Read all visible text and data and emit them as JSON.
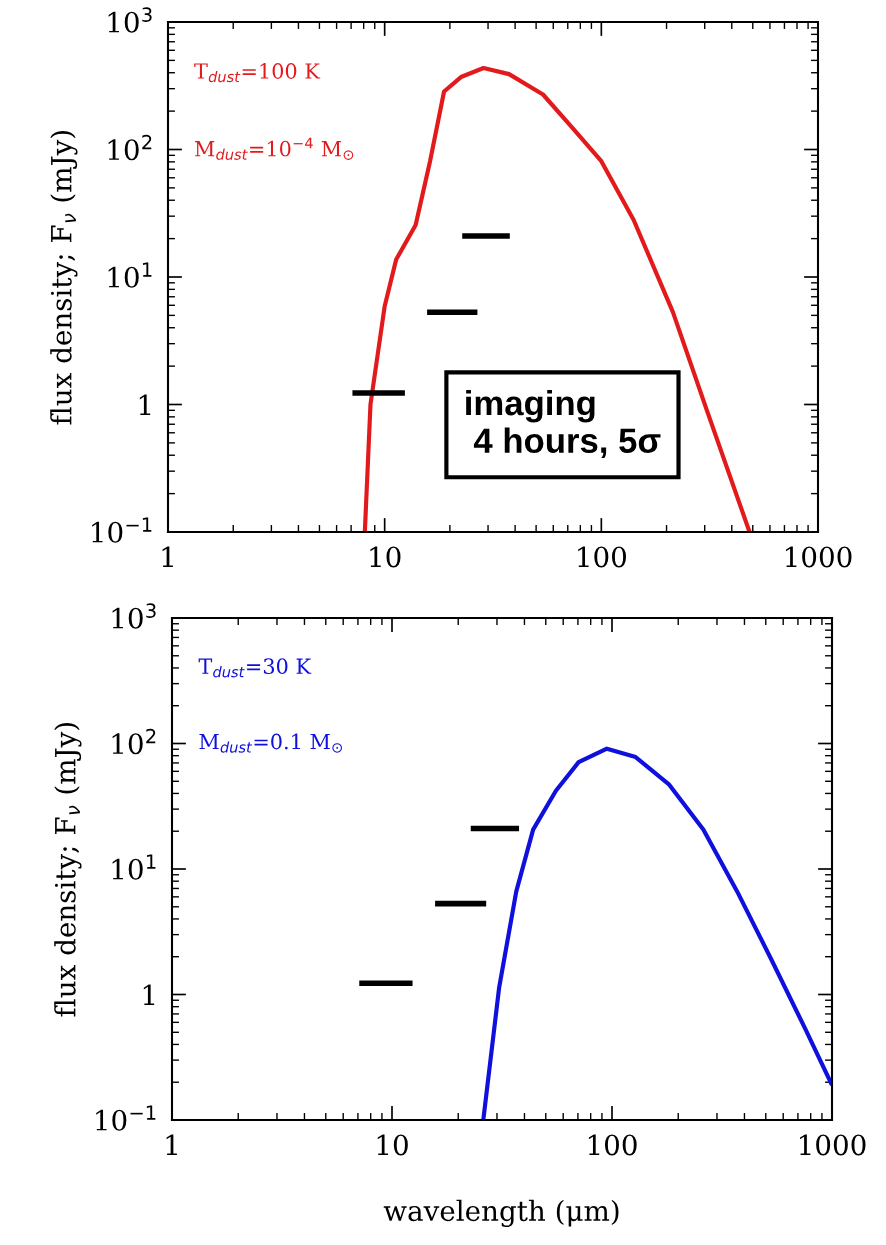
{
  "chart_data": [
    {
      "type": "line",
      "ylabel": "flux density; F$_{ν}$ (mJy)",
      "xlim": [
        1,
        1000
      ],
      "xticks": [
        1,
        10,
        100,
        1000
      ],
      "ylim": [
        0.1,
        1000
      ],
      "yticks": [
        {
          "value": 0.1,
          "label": "10$^{−1}$"
        },
        1,
        {
          "value": 10,
          "label": "10$^{1}$"
        },
        {
          "value": 100,
          "label": "10$^{2}$"
        },
        {
          "value": 1000,
          "label": "10$^{3}$"
        }
      ],
      "log": "xy",
      "grid": false,
      "legend": false,
      "annotations": [
        "T$_{dust}$=100 K",
        "M$_{dust}$=10$^{−4}$ M$_{⊙}$",
        "imaging\n 4 hours, 5σ"
      ],
      "series": [
        {
          "color": "#e31a1c",
          "x": [
            8.1,
            8.6,
            10,
            11.3,
            13.9,
            16.2,
            18.8,
            22.5,
            28.6,
            37.5,
            53.8,
            72.7,
            100,
            141,
            214,
            307,
            483
          ],
          "values": [
            0.1,
            1,
            5.9,
            13.7,
            25.6,
            81,
            285,
            370,
            436,
            390,
            270,
            151,
            81,
            28,
            5.3,
            0.9,
            0.1
          ]
        },
        {
          "color": "#000000",
          "x": [
            7.1,
            12.4
          ],
          "values": [
            1.23,
            1.23
          ]
        },
        {
          "color": "#000000",
          "x": [
            15.7,
            26.8
          ],
          "values": [
            5.3,
            5.3
          ]
        },
        {
          "color": "#000000",
          "x": [
            22.8,
            37.8
          ],
          "values": [
            21,
            21
          ]
        }
      ]
    },
    {
      "type": "line",
      "xlabel": "wavelength (μm)",
      "ylabel": "flux density; F$_{ν}$ (mJy)",
      "xlim": [
        1,
        1000
      ],
      "xticks": [
        1,
        10,
        100,
        1000
      ],
      "ylim": [
        0.1,
        1000
      ],
      "yticks": [
        {
          "value": 0.1,
          "label": "10$^{−1}$"
        },
        1,
        {
          "value": 10,
          "label": "10$^{1}$"
        },
        {
          "value": 100,
          "label": "10$^{2}$"
        },
        {
          "value": 1000,
          "label": "10$^{3}$"
        }
      ],
      "log": "xy",
      "grid": false,
      "legend": false,
      "annotations": [
        "T$_{dust}$=30 K",
        "M$_{dust}$=0.1 M$_{⊙}$"
      ],
      "series": [
        {
          "color": "#1010dd",
          "x": [
            26,
            30.7,
            36.7,
            43.8,
            55.6,
            70.5,
            94.8,
            128,
            182,
            260,
            371,
            530,
            757,
            1000
          ],
          "values": [
            0.1,
            1.14,
            6.6,
            20.6,
            42,
            71,
            91,
            78,
            47,
            20.6,
            6.6,
            1.9,
            0.53,
            0.19
          ]
        },
        {
          "color": "#000000",
          "x": [
            7.1,
            12.4
          ],
          "values": [
            1.23,
            1.23
          ]
        },
        {
          "color": "#000000",
          "x": [
            15.7,
            26.8
          ],
          "values": [
            5.3,
            5.3
          ]
        },
        {
          "color": "#000000",
          "x": [
            22.8,
            37.8
          ],
          "values": [
            21,
            21
          ]
        }
      ]
    }
  ]
}
